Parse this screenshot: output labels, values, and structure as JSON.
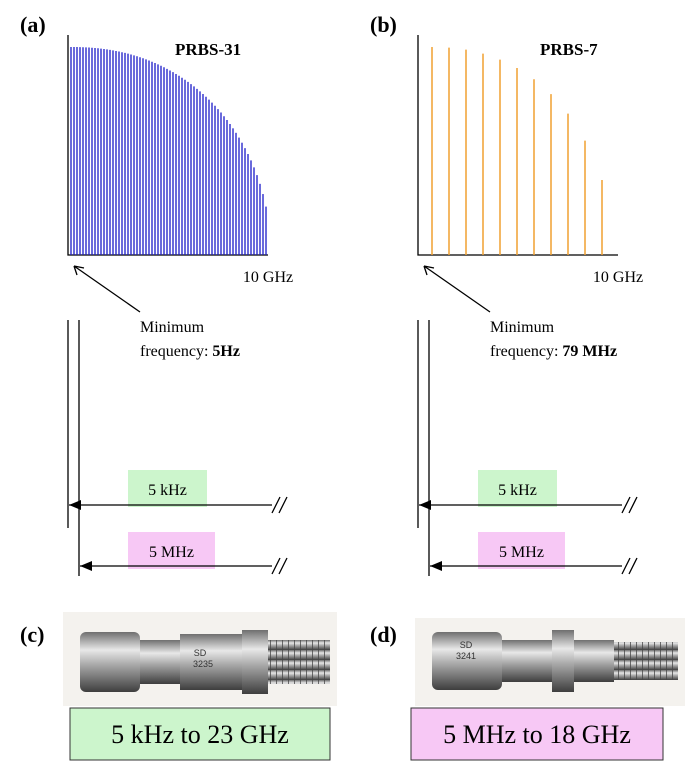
{
  "panels": [
    {
      "label": "(a)",
      "title": "PRBS-31",
      "axis_end": "10 GHz",
      "annotation": {
        "line1": "Minimum",
        "line2_prefix": "frequency: ",
        "line2_value": "5Hz"
      },
      "bands": [
        "5 kHz",
        "5 MHz"
      ]
    },
    {
      "label": "(b)",
      "title": "PRBS-7",
      "axis_end": "10 GHz",
      "annotation": {
        "line1": "Minimum",
        "line2_prefix": "frequency: ",
        "line2_value": "79 MHz"
      },
      "bands": [
        "5 kHz",
        "5 MHz"
      ]
    }
  ],
  "connectors": [
    {
      "label": "(c)",
      "stamp": [
        "SD",
        "3235"
      ],
      "range": "5 kHz to 23 GHz"
    },
    {
      "label": "(d)",
      "stamp": [
        "SD",
        "3241"
      ],
      "range": "5 MHz to 18 GHz"
    }
  ]
}
